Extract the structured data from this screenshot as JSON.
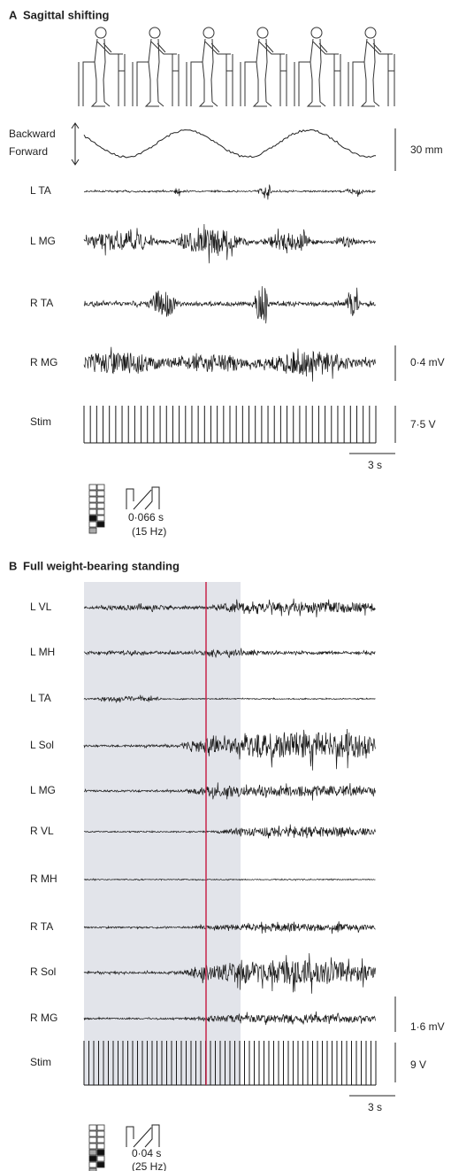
{
  "panel_a": {
    "label": "A",
    "title": "Sagittal shifting",
    "position_labels": [
      "Backward",
      "Forward"
    ],
    "position_scale": "30 mm",
    "channels": [
      "L TA",
      "L MG",
      "R TA",
      "R MG",
      "Stim"
    ],
    "emg_scale": "0·4 mV",
    "stim_scale": "7·5 V",
    "time_scale": "3 s",
    "pulse_width": "0·066 s",
    "frequency": "(15 Hz)"
  },
  "panel_b": {
    "label": "B",
    "title": "Full weight-bearing standing",
    "channels": [
      "L VL",
      "L MH",
      "L TA",
      "L Sol",
      "L MG",
      "R VL",
      "R MH",
      "R TA",
      "R Sol",
      "R MG",
      "Stim"
    ],
    "emg_scale": "1·6 mV",
    "stim_scale": "9 V",
    "time_scale": "3 s",
    "pulse_width": "0·04 s",
    "frequency": "(25 Hz)"
  }
}
